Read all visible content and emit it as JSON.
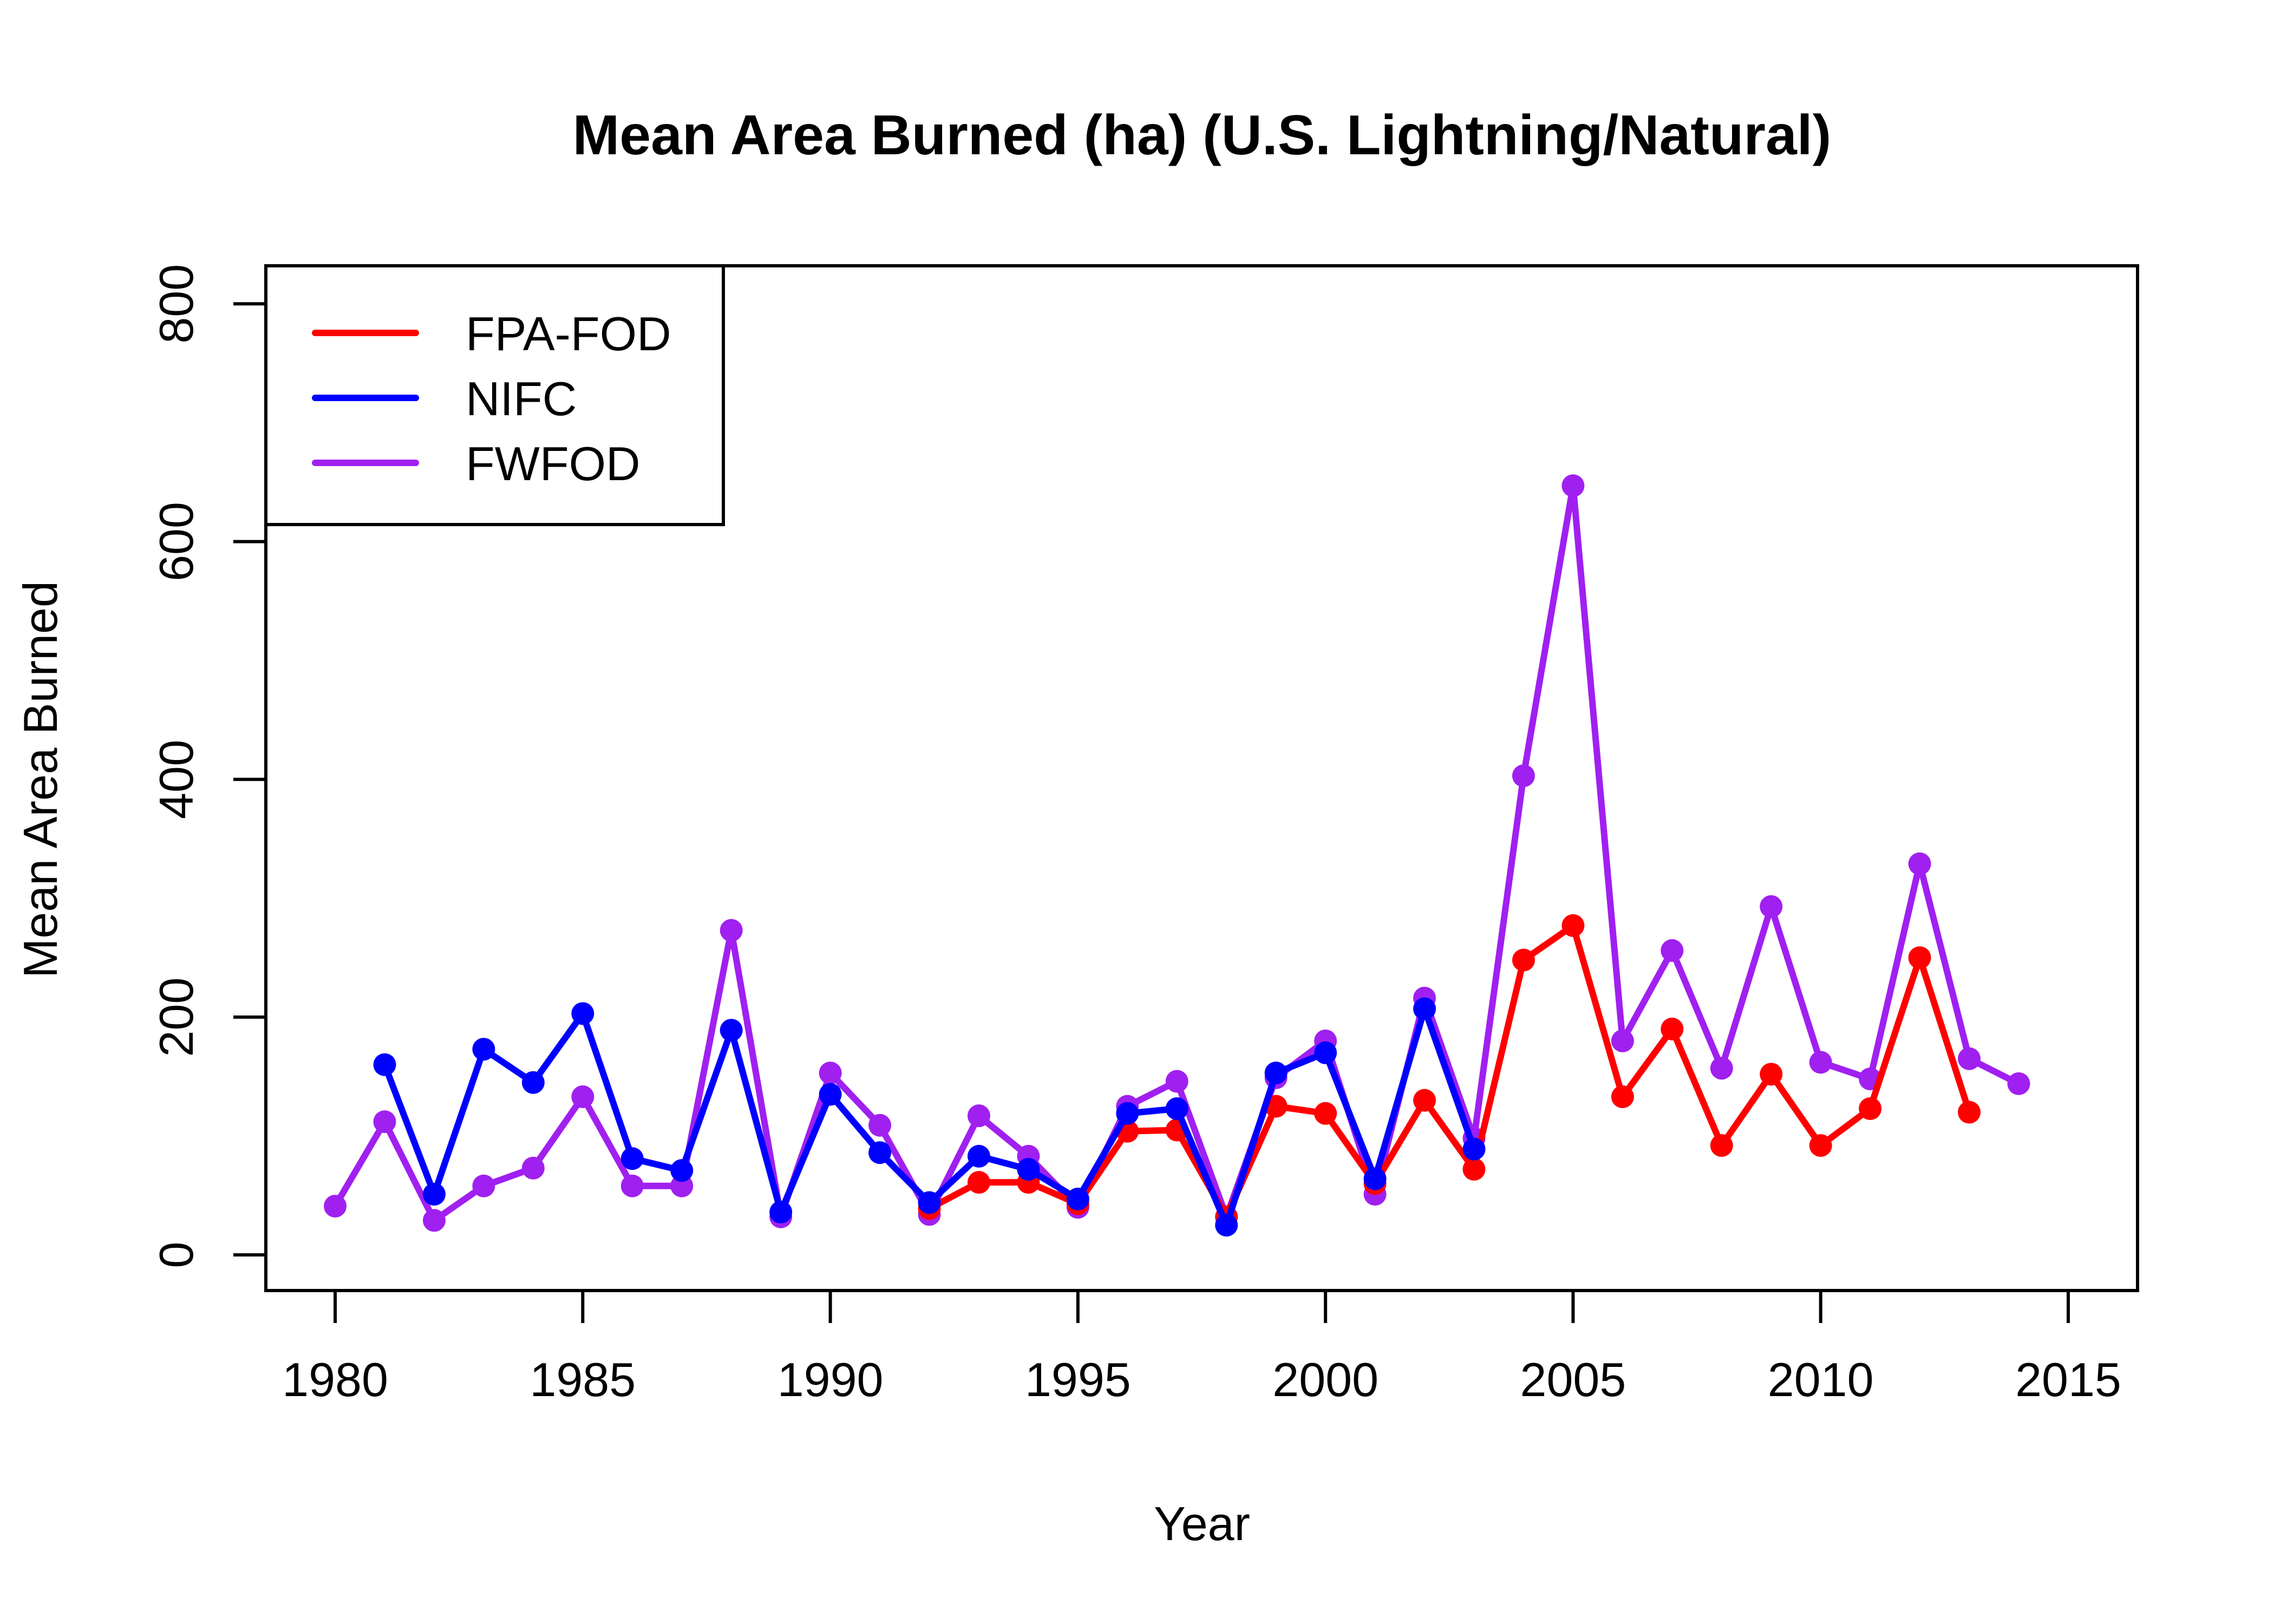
{
  "chart_data": {
    "type": "line",
    "title": "Mean Area Burned (ha) (U.S. Lightning/Natural)",
    "xlabel": "Year",
    "ylabel": "Mean Area Burned",
    "xlim": [
      1978.6,
      2016.4
    ],
    "ylim": [
      -30,
      832
    ],
    "xticks": [
      1980,
      1985,
      1990,
      1995,
      2000,
      2005,
      2010,
      2015
    ],
    "yticks": [
      0,
      200,
      400,
      600,
      800
    ],
    "grid": false,
    "legend_position": "top-left",
    "series": [
      {
        "name": "FPA-FOD",
        "color": "#ff0000",
        "x": [
          1992,
          1993,
          1994,
          1995,
          1996,
          1997,
          1998,
          1999,
          2000,
          2001,
          2002,
          2003,
          2004,
          2005,
          2006,
          2007,
          2008,
          2009,
          2010,
          2011,
          2012,
          2013
        ],
        "values": [
          39,
          61,
          61,
          43,
          104,
          105,
          32,
          125,
          119,
          60,
          130,
          72,
          248,
          277,
          133,
          190,
          92,
          152,
          92,
          123,
          250,
          120
        ]
      },
      {
        "name": "NIFC",
        "color": "#0000ff",
        "x": [
          1981,
          1982,
          1983,
          1984,
          1985,
          1986,
          1987,
          1988,
          1989,
          1990,
          1991,
          1992,
          1993,
          1994,
          1995,
          1996,
          1997,
          1998,
          1999,
          2000,
          2001,
          2002,
          2003
        ],
        "values": [
          160,
          51,
          173,
          145,
          203,
          81,
          71,
          189,
          36,
          135,
          86,
          44,
          83,
          72,
          47,
          119,
          123,
          25,
          153,
          170,
          64,
          207,
          89
        ]
      },
      {
        "name": "FWFOD",
        "color": "#a020f0",
        "x": [
          1980,
          1981,
          1982,
          1983,
          1984,
          1985,
          1986,
          1987,
          1988,
          1989,
          1990,
          1991,
          1992,
          1993,
          1994,
          1995,
          1996,
          1997,
          1998,
          1999,
          2000,
          2001,
          2002,
          2003,
          2004,
          2005,
          2006,
          2007,
          2008,
          2009,
          2010,
          2011,
          2012,
          2013,
          2014
        ],
        "values": [
          41,
          112,
          29,
          58,
          73,
          133,
          58,
          58,
          273,
          32,
          153,
          109,
          34,
          117,
          83,
          40,
          125,
          146,
          32,
          149,
          180,
          51,
          216,
          98,
          403,
          647,
          180,
          256,
          157,
          293,
          162,
          148,
          329,
          165,
          144
        ]
      }
    ]
  }
}
